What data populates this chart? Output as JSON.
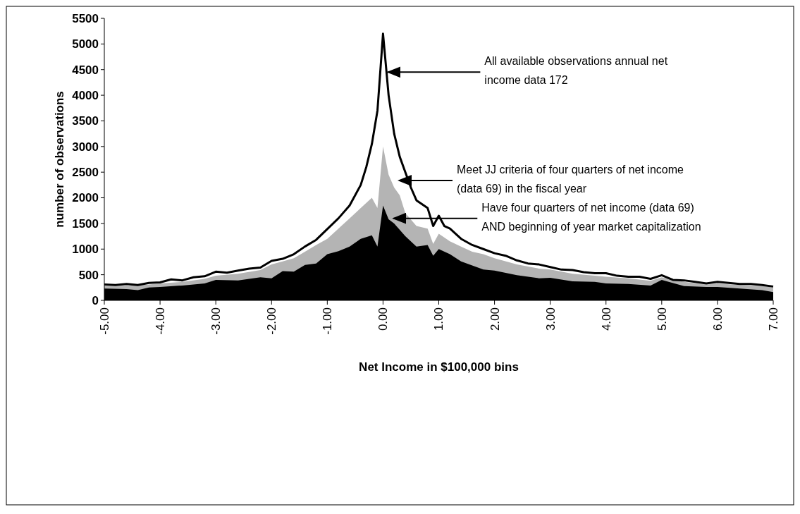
{
  "chart_data": {
    "type": "area",
    "xlabel": "Net Income in $100,000 bins",
    "ylabel": "number of observations",
    "xlim": [
      -5,
      7
    ],
    "xticks": [
      {
        "value": -5,
        "label": "-5.00"
      },
      {
        "value": -4,
        "label": "-4.00"
      },
      {
        "value": -3,
        "label": "-3.00"
      },
      {
        "value": -2,
        "label": "-2.00"
      },
      {
        "value": -1,
        "label": "-1.00"
      },
      {
        "value": 0,
        "label": "0.00"
      },
      {
        "value": 1,
        "label": "1.00"
      },
      {
        "value": 2,
        "label": "2.00"
      },
      {
        "value": 3,
        "label": "3.00"
      },
      {
        "value": 4,
        "label": "4.00"
      },
      {
        "value": 5,
        "label": "5.00"
      },
      {
        "value": 6,
        "label": "6.00"
      },
      {
        "value": 7,
        "label": "7.00"
      }
    ],
    "ylim": [
      0,
      5500
    ],
    "yticks": [
      0,
      500,
      1000,
      1500,
      2000,
      2500,
      3000,
      3500,
      4000,
      4500,
      5000,
      5500
    ],
    "grid": false,
    "series": [
      {
        "color": "#b4b4b4",
        "x": [
          -5,
          -4.6,
          -4.2,
          -4,
          -3.6,
          -3.2,
          -3,
          -2.6,
          -2.2,
          -2,
          -1.8,
          -1.6,
          -1.4,
          -1.2,
          -1,
          -0.8,
          -0.6,
          -0.4,
          -0.2,
          -0.1,
          0,
          0.1,
          0.2,
          0.3,
          0.4,
          0.6,
          0.8,
          0.9,
          1,
          1.2,
          1.4,
          1.6,
          1.8,
          2,
          2.4,
          2.8,
          3,
          3.4,
          3.8,
          4,
          4.4,
          4.8,
          5,
          5.4,
          5.8,
          6,
          6.4,
          6.8,
          7
        ],
        "values": [
          280,
          290,
          310,
          330,
          360,
          420,
          480,
          520,
          590,
          700,
          760,
          820,
          950,
          1080,
          1200,
          1400,
          1600,
          1800,
          2000,
          1800,
          3000,
          2450,
          2200,
          2050,
          1700,
          1450,
          1400,
          1100,
          1300,
          1150,
          1050,
          950,
          900,
          820,
          700,
          620,
          600,
          520,
          480,
          460,
          430,
          380,
          450,
          360,
          310,
          330,
          300,
          280,
          250
        ]
      },
      {
        "color": "#000000",
        "x": [
          -5,
          -4.6,
          -4.4,
          -4.2,
          -4,
          -3.6,
          -3.2,
          -3,
          -2.6,
          -2.2,
          -2,
          -1.8,
          -1.6,
          -1.4,
          -1.2,
          -1,
          -0.8,
          -0.6,
          -0.4,
          -0.2,
          -0.1,
          0,
          0.1,
          0.2,
          0.4,
          0.6,
          0.8,
          0.9,
          1,
          1.2,
          1.4,
          1.6,
          1.8,
          2,
          2.4,
          2.8,
          3,
          3.4,
          3.8,
          4,
          4.4,
          4.8,
          5,
          5.4,
          5.8,
          6,
          6.4,
          6.8,
          7
        ],
        "values": [
          230,
          220,
          200,
          250,
          260,
          290,
          330,
          400,
          390,
          450,
          430,
          570,
          560,
          690,
          720,
          900,
          960,
          1050,
          1200,
          1270,
          1050,
          1850,
          1580,
          1500,
          1250,
          1050,
          1080,
          870,
          1000,
          900,
          760,
          680,
          600,
          580,
          490,
          430,
          440,
          370,
          360,
          330,
          320,
          290,
          400,
          280,
          260,
          260,
          230,
          200,
          160
        ]
      },
      {
        "type": "line",
        "color": "#000000",
        "x": [
          -5,
          -4.8,
          -4.6,
          -4.4,
          -4.2,
          -4,
          -3.8,
          -3.6,
          -3.4,
          -3.2,
          -3,
          -2.8,
          -2.6,
          -2.4,
          -2.2,
          -2,
          -1.8,
          -1.6,
          -1.4,
          -1.2,
          -1,
          -0.8,
          -0.6,
          -0.4,
          -0.3,
          -0.2,
          -0.1,
          0,
          0.1,
          0.2,
          0.3,
          0.4,
          0.5,
          0.6,
          0.8,
          0.9,
          1,
          1.1,
          1.2,
          1.4,
          1.6,
          1.8,
          2,
          2.2,
          2.4,
          2.6,
          2.8,
          3,
          3.2,
          3.4,
          3.6,
          3.8,
          4,
          4.2,
          4.4,
          4.6,
          4.8,
          5,
          5.2,
          5.4,
          5.6,
          5.8,
          6,
          6.2,
          6.4,
          6.6,
          6.8,
          7
        ],
        "values": [
          310,
          300,
          320,
          300,
          340,
          350,
          410,
          390,
          450,
          470,
          560,
          540,
          580,
          620,
          640,
          770,
          810,
          900,
          1050,
          1180,
          1390,
          1600,
          1850,
          2250,
          2600,
          3050,
          3700,
          5200,
          4000,
          3250,
          2800,
          2500,
          2200,
          1950,
          1800,
          1450,
          1650,
          1450,
          1400,
          1200,
          1080,
          1000,
          920,
          870,
          780,
          720,
          700,
          650,
          600,
          590,
          550,
          530,
          530,
          480,
          460,
          460,
          420,
          490,
          400,
          390,
          360,
          330,
          360,
          340,
          320,
          320,
          300,
          270
        ]
      }
    ],
    "annotations": [
      {
        "text": "All available observations annual net\nincome data 172",
        "x": 0.05,
        "y": 4450
      },
      "Meet JJ criteria of four quarters of net income\n(data 69) in the fiscal year",
      {
        "text": "Have four quarters of net income (data 69)\nAND beginning of year market capitalization",
        "x": 0.15,
        "y": 1600
      }
    ]
  }
}
